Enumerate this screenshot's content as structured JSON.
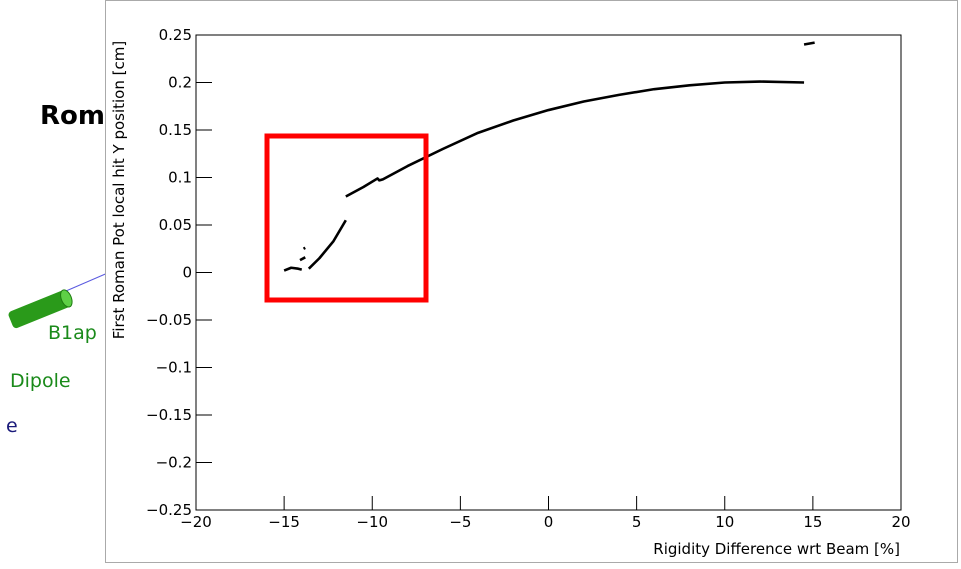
{
  "slide": {
    "title": "Roma",
    "labels": [
      "B1ap",
      "Dipole",
      "e"
    ]
  },
  "chart_data": {
    "type": "line",
    "x_label": "Rigidity Difference wrt Beam [%]",
    "y_label": "First Roman Pot local hit Y position [cm]",
    "x": [
      -15.0,
      -14.6,
      -14.2,
      -14.0,
      null,
      -14.1,
      -13.8,
      null,
      -13.9,
      -13.8,
      null,
      -13.6,
      -13.0,
      -12.2,
      -11.5,
      null,
      -11.5,
      -10.5,
      -9.7,
      -9.6,
      -9.4,
      -8,
      -6,
      -4,
      -2,
      0,
      2,
      4,
      6,
      8,
      10,
      12,
      14.5,
      null,
      14.5,
      15.1
    ],
    "series": [
      {
        "color": "#000000",
        "values": [
          0.002,
          0.005,
          0.004,
          0.003,
          null,
          0.013,
          0.016,
          null,
          0.025,
          0.026,
          null,
          0.004,
          0.015,
          0.033,
          0.055,
          null,
          0.08,
          0.09,
          0.099,
          0.097,
          0.098,
          0.112,
          0.13,
          0.147,
          0.16,
          0.171,
          0.18,
          0.187,
          0.193,
          0.197,
          0.2,
          0.201,
          0.2,
          null,
          0.24,
          0.242
        ]
      }
    ],
    "xlim": [
      -20,
      20
    ],
    "xticks": [
      {
        "value": -20,
        "label": "−20"
      },
      {
        "value": -15,
        "label": "−15"
      },
      {
        "value": -10,
        "label": "−10"
      },
      {
        "value": -5,
        "label": "−5"
      },
      0,
      5,
      10,
      15,
      20
    ],
    "ylim": [
      -0.25,
      0.25
    ],
    "yticks": [
      {
        "value": -0.25,
        "label": "−0.25"
      },
      {
        "value": -0.2,
        "label": "−0.2"
      },
      {
        "value": -0.15,
        "label": "−0.15"
      },
      {
        "value": -0.1,
        "label": "−0.1"
      },
      {
        "value": -0.05,
        "label": "−0.05"
      },
      0,
      0.05,
      0.1,
      0.15,
      0.2,
      0.25
    ]
  }
}
